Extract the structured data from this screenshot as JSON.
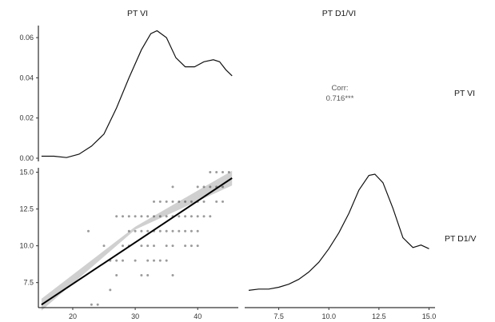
{
  "chart_data": {
    "type": "scatter-matrix",
    "variables": [
      "PT VI",
      "PT D1/VI"
    ],
    "column_labels": [
      "PT VI",
      "PT D1/VI"
    ],
    "row_labels": [
      "PT VI",
      "PT D1/V"
    ],
    "upper_panel": {
      "type": "text",
      "label": "Corr:",
      "value": "0.716***"
    },
    "density_vi": {
      "type": "line",
      "ylim": [
        0,
        0.066
      ],
      "y_ticks": [
        0.0,
        0.02,
        0.04,
        0.06
      ],
      "y_tick_labels": [
        "0.00",
        "0.02",
        "0.04",
        "0.06"
      ],
      "points": [
        [
          15,
          0.001
        ],
        [
          17,
          0.001
        ],
        [
          19,
          0.0003
        ],
        [
          21,
          0.002
        ],
        [
          23,
          0.006
        ],
        [
          25,
          0.012
        ],
        [
          27,
          0.025
        ],
        [
          29,
          0.04
        ],
        [
          31,
          0.054
        ],
        [
          32.5,
          0.062
        ],
        [
          33.5,
          0.0634
        ],
        [
          35,
          0.06
        ],
        [
          36.5,
          0.05
        ],
        [
          38,
          0.0455
        ],
        [
          39.5,
          0.0455
        ],
        [
          41,
          0.048
        ],
        [
          42.5,
          0.049
        ],
        [
          43.5,
          0.048
        ],
        [
          44.5,
          0.044
        ],
        [
          45.5,
          0.041
        ]
      ]
    },
    "density_d1": {
      "type": "line",
      "xlim": [
        5.8,
        15.3
      ],
      "x_ticks": [
        7.5,
        10.0,
        12.5,
        15.0
      ],
      "x_tick_labels": [
        "7.5",
        "10.0",
        "12.5",
        "15.0"
      ],
      "points": [
        [
          6,
          0.05
        ],
        [
          6.5,
          0.06
        ],
        [
          7,
          0.06
        ],
        [
          7.5,
          0.075
        ],
        [
          8,
          0.1
        ],
        [
          8.5,
          0.14
        ],
        [
          9,
          0.2
        ],
        [
          9.5,
          0.28
        ],
        [
          10,
          0.39
        ],
        [
          10.5,
          0.52
        ],
        [
          11,
          0.68
        ],
        [
          11.5,
          0.87
        ],
        [
          12,
          0.99
        ],
        [
          12.3,
          1.0
        ],
        [
          12.7,
          0.93
        ],
        [
          13.2,
          0.72
        ],
        [
          13.7,
          0.48
        ],
        [
          14.2,
          0.4
        ],
        [
          14.6,
          0.42
        ],
        [
          15,
          0.39
        ]
      ]
    },
    "scatter": {
      "type": "scatter",
      "xlim": [
        14.5,
        46.5
      ],
      "ylim": [
        5.8,
        15.3
      ],
      "x_ticks": [
        20,
        30,
        40
      ],
      "x_tick_labels": [
        "20",
        "30",
        "40"
      ],
      "y_ticks": [
        7.5,
        10.0,
        12.5,
        15.0
      ],
      "y_tick_labels": [
        "7.5",
        "10.0",
        "12.5",
        "15.0"
      ],
      "points": [
        [
          23,
          6
        ],
        [
          24,
          6
        ],
        [
          26,
          7
        ],
        [
          27,
          8
        ],
        [
          22.5,
          11
        ],
        [
          25,
          10
        ],
        [
          26,
          9
        ],
        [
          27,
          9
        ],
        [
          28,
          9
        ],
        [
          28,
          10
        ],
        [
          29,
          10
        ],
        [
          29,
          11
        ],
        [
          27,
          12
        ],
        [
          28,
          12
        ],
        [
          29,
          12
        ],
        [
          30,
          12
        ],
        [
          30,
          11
        ],
        [
          31,
          11
        ],
        [
          31,
          10
        ],
        [
          30,
          9
        ],
        [
          31,
          8
        ],
        [
          32,
          8
        ],
        [
          32,
          9
        ],
        [
          33,
          9
        ],
        [
          34,
          9
        ],
        [
          32,
          10
        ],
        [
          33,
          10
        ],
        [
          32,
          11
        ],
        [
          33,
          11
        ],
        [
          31,
          12
        ],
        [
          32,
          12
        ],
        [
          33,
          12
        ],
        [
          34,
          12
        ],
        [
          35,
          12
        ],
        [
          36,
          12
        ],
        [
          37,
          12
        ],
        [
          34,
          13
        ],
        [
          35,
          13
        ],
        [
          36,
          13
        ],
        [
          37,
          13
        ],
        [
          38,
          13
        ],
        [
          39,
          13
        ],
        [
          36,
          11
        ],
        [
          37,
          11
        ],
        [
          38,
          11
        ],
        [
          39,
          11
        ],
        [
          40,
          11
        ],
        [
          35,
          10
        ],
        [
          36,
          10
        ],
        [
          38,
          10
        ],
        [
          39,
          10
        ],
        [
          40,
          10
        ],
        [
          35,
          9
        ],
        [
          36,
          8
        ],
        [
          33,
          13
        ],
        [
          34,
          11
        ],
        [
          35,
          11
        ],
        [
          38,
          12
        ],
        [
          39,
          12
        ],
        [
          40,
          12
        ],
        [
          41,
          12
        ],
        [
          42,
          12
        ],
        [
          40,
          13
        ],
        [
          41,
          13
        ],
        [
          36,
          14
        ],
        [
          40,
          14
        ],
        [
          41,
          14
        ],
        [
          42,
          14
        ],
        [
          43,
          14
        ],
        [
          44,
          14
        ],
        [
          43,
          15
        ],
        [
          44,
          15
        ],
        [
          45,
          15
        ],
        [
          42,
          15
        ],
        [
          43,
          13
        ],
        [
          44,
          13
        ]
      ],
      "fit_line": {
        "x": [
          15,
          45.5
        ],
        "y": [
          6.0,
          14.6
        ]
      },
      "ci_band": {
        "x": [
          15,
          30,
          45.5
        ],
        "lower": [
          5.6,
          11.1,
          14.1
        ],
        "upper": [
          6.4,
          11.3,
          15.1
        ]
      }
    }
  }
}
